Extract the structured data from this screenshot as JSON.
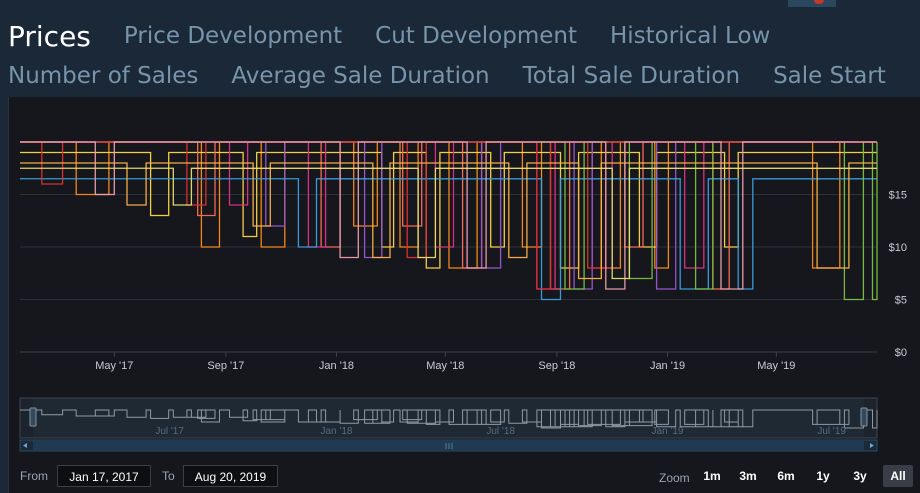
{
  "tabs_row1": [
    {
      "label": "Prices",
      "active": true
    },
    {
      "label": "Price Development"
    },
    {
      "label": "Cut Development"
    },
    {
      "label": "Historical Low"
    }
  ],
  "tabs_row2": [
    {
      "label": "Number of Sales"
    },
    {
      "label": "Average Sale Duration"
    },
    {
      "label": "Total Sale Duration"
    },
    {
      "label": "Sale Start"
    }
  ],
  "range": {
    "from_label": "From",
    "from_value": "Jan 17, 2017",
    "to_label": "To",
    "to_value": "Aug 20, 2019"
  },
  "zoom": {
    "label": "Zoom",
    "buttons": [
      "1m",
      "3m",
      "6m",
      "1y",
      "3y",
      "All"
    ],
    "selected": "All"
  },
  "chart_data": {
    "type": "line",
    "x_range": [
      "2017-01-17",
      "2019-08-20"
    ],
    "ylim": [
      0,
      20
    ],
    "y_ticks": [
      0,
      5,
      10,
      15
    ],
    "y_tick_labels": [
      "$0",
      "$5",
      "$10",
      "$15"
    ],
    "x_ticks": [
      "2017-05-01",
      "2017-09-01",
      "2018-01-01",
      "2018-05-01",
      "2018-09-01",
      "2019-01-01",
      "2019-05-01"
    ],
    "x_tick_labels": [
      "May '17",
      "Sep '17",
      "Jan '18",
      "May '18",
      "Sep '18",
      "Jan '19",
      "May '19"
    ],
    "navigator_ticks": [
      "2017-07-01",
      "2018-01-01",
      "2018-07-01",
      "2019-01-01",
      "2019-07-01"
    ],
    "navigator_tick_labels": [
      "Jul '17",
      "Jan '18",
      "Jul '18",
      "Jan '19",
      "Jul '19"
    ],
    "grid": true,
    "series": [
      {
        "color": "#ff8c1a",
        "base": 20,
        "lows": [
          [
            "2017-03-20",
            "2017-04-25",
            15
          ],
          [
            "2017-08-05",
            "2017-08-25",
            10
          ],
          [
            "2017-10-10",
            "2017-11-05",
            10
          ],
          [
            "2018-01-20",
            "2018-02-15",
            12
          ],
          [
            "2018-03-12",
            "2018-04-01",
            10
          ],
          [
            "2018-05-05",
            "2018-06-05",
            8
          ],
          [
            "2018-07-25",
            "2018-08-15",
            10
          ],
          [
            "2018-10-20",
            "2018-11-10",
            8
          ],
          [
            "2018-12-18",
            "2019-01-02",
            8
          ],
          [
            "2019-06-10",
            "2019-07-10",
            8
          ]
        ]
      },
      {
        "color": "#ffd54a",
        "base": 19,
        "lows": [
          [
            "2017-06-10",
            "2017-06-30",
            13
          ],
          [
            "2017-09-20",
            "2017-10-05",
            11
          ],
          [
            "2018-02-20",
            "2018-03-05",
            10
          ],
          [
            "2018-04-10",
            "2018-04-25",
            8
          ],
          [
            "2018-06-20",
            "2018-07-05",
            10
          ],
          [
            "2018-09-05",
            "2018-09-25",
            8
          ],
          [
            "2018-12-01",
            "2018-12-20",
            10
          ],
          [
            "2019-03-05",
            "2019-03-20",
            10
          ]
        ]
      },
      {
        "color": "#ff6f5a",
        "base": 20,
        "lows": [
          [
            "2017-08-01",
            "2017-08-20",
            13
          ],
          [
            "2017-12-15",
            "2018-01-05",
            10
          ],
          [
            "2018-03-15",
            "2018-04-05",
            12
          ],
          [
            "2018-05-20",
            "2018-06-10",
            8
          ],
          [
            "2018-08-25",
            "2018-09-15",
            6
          ],
          [
            "2018-11-15",
            "2018-12-05",
            10
          ],
          [
            "2019-02-20",
            "2019-03-10",
            6
          ]
        ]
      },
      {
        "color": "#e0308a",
        "base": 20,
        "lows": [
          [
            "2017-09-05",
            "2017-09-25",
            14
          ],
          [
            "2017-12-01",
            "2017-12-20",
            10
          ],
          [
            "2018-04-20",
            "2018-05-10",
            10
          ],
          [
            "2018-08-10",
            "2018-08-30",
            6
          ],
          [
            "2018-10-10",
            "2018-11-01",
            8
          ],
          [
            "2019-01-20",
            "2019-02-10",
            8
          ]
        ]
      },
      {
        "color": "#9b59d0",
        "base": 20,
        "lows": [
          [
            "2017-10-15",
            "2017-11-05",
            12
          ],
          [
            "2018-02-01",
            "2018-02-20",
            9
          ],
          [
            "2018-06-10",
            "2018-07-01",
            8
          ],
          [
            "2018-09-20",
            "2018-10-10",
            6
          ],
          [
            "2018-12-20",
            "2019-01-10",
            6
          ]
        ]
      },
      {
        "color": "#3aa0e0",
        "base": 16.5,
        "lows": [
          [
            "2017-11-20",
            "2017-12-10",
            10
          ],
          [
            "2018-08-15",
            "2018-09-05",
            5
          ],
          [
            "2019-01-15",
            "2019-02-15",
            6
          ],
          [
            "2019-03-20",
            "2019-04-05",
            6
          ]
        ]
      },
      {
        "color": "#7cc242",
        "base": 20,
        "lows": [
          [
            "2018-09-10",
            "2018-10-01",
            6
          ],
          [
            "2018-11-20",
            "2018-12-15",
            7
          ],
          [
            "2019-02-01",
            "2019-02-20",
            6
          ],
          [
            "2019-07-15",
            "2019-08-05",
            5
          ],
          [
            "2019-08-15",
            "2019-08-20",
            5
          ]
        ]
      },
      {
        "color": "#e03030",
        "base": 20,
        "lows": [
          [
            "2017-02-10",
            "2017-03-05",
            16
          ],
          [
            "2017-07-20",
            "2017-08-10",
            14
          ],
          [
            "2018-03-20",
            "2018-04-10",
            9
          ],
          [
            "2018-08-10",
            "2018-08-25",
            6
          ],
          [
            "2018-10-05",
            "2018-10-25",
            8
          ]
        ]
      },
      {
        "color": "#f0a0b0",
        "base": 20,
        "lows": [
          [
            "2017-04-10",
            "2017-05-01",
            15
          ],
          [
            "2018-01-05",
            "2018-01-25",
            9
          ],
          [
            "2018-05-25",
            "2018-06-15",
            8
          ],
          [
            "2018-10-25",
            "2018-11-15",
            6
          ],
          [
            "2019-03-01",
            "2019-03-25",
            6
          ]
        ]
      },
      {
        "color": "#ffb347",
        "base": 18,
        "lows": [
          [
            "2017-05-15",
            "2017-06-05",
            14
          ],
          [
            "2017-10-01",
            "2017-10-20",
            12
          ],
          [
            "2018-02-10",
            "2018-03-01",
            9
          ],
          [
            "2018-07-10",
            "2018-07-30",
            9
          ],
          [
            "2018-09-25",
            "2018-10-20",
            7
          ],
          [
            "2019-06-15",
            "2019-07-20",
            8
          ]
        ]
      },
      {
        "color": "#e8e070",
        "base": 17.5,
        "lows": [
          [
            "2017-07-05",
            "2017-07-25",
            14
          ],
          [
            "2018-04-01",
            "2018-04-20",
            9
          ],
          [
            "2018-11-01",
            "2018-11-20",
            7
          ]
        ]
      }
    ]
  }
}
